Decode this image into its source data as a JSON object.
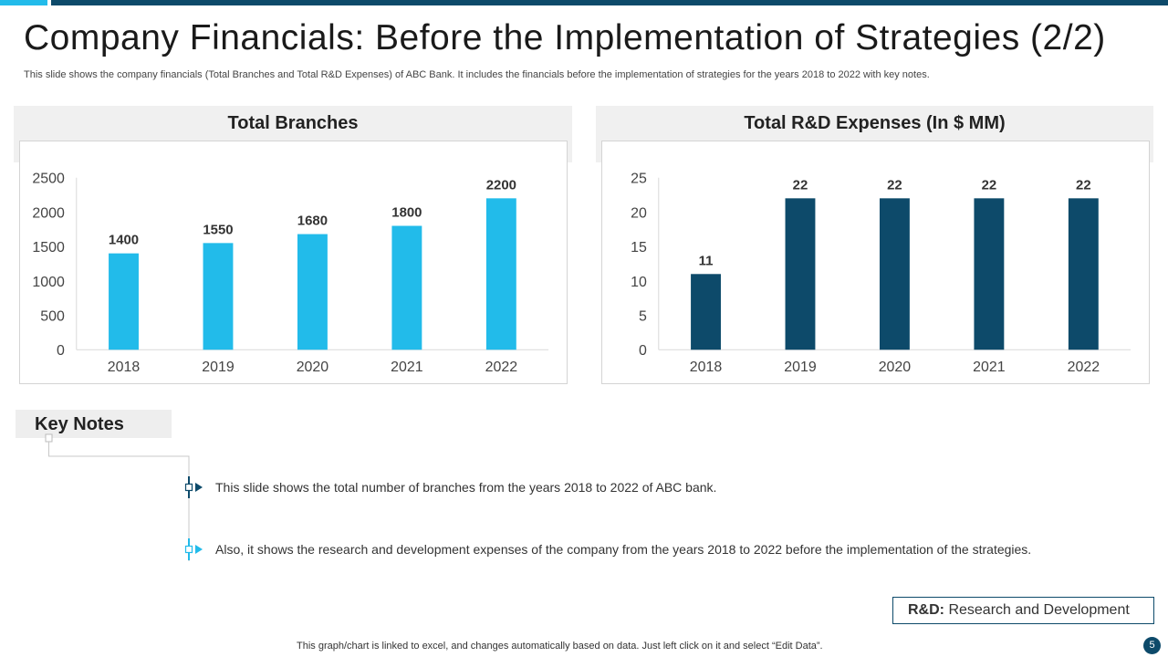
{
  "slide": {
    "title": "Company Financials: Before the Implementation of Strategies (2/2)",
    "subtitle": "This slide shows the company financials (Total Branches and Total R&D Expenses) of ABC Bank. It includes the financials before the implementation of strategies for the years 2018 to 2022 with key notes.",
    "page_number": "5"
  },
  "colors": {
    "accent_light": "#22bbea",
    "accent_dark": "#0d4a6a"
  },
  "chart_data": [
    {
      "type": "bar",
      "title": "Total Branches",
      "categories": [
        "2018",
        "2019",
        "2020",
        "2021",
        "2022"
      ],
      "values": [
        1400,
        1550,
        1680,
        1800,
        2200
      ],
      "ylim": [
        0,
        2500
      ],
      "yticks": [
        0,
        500,
        1000,
        1500,
        2000,
        2500
      ],
      "xlabel": "",
      "ylabel": "",
      "color": "#22bbea",
      "grid": false
    },
    {
      "type": "bar",
      "title": "Total R&D Expenses (In $ MM)",
      "categories": [
        "2018",
        "2019",
        "2020",
        "2021",
        "2022"
      ],
      "values": [
        11,
        22,
        22,
        22,
        22
      ],
      "ylim": [
        0,
        25
      ],
      "yticks": [
        0,
        5,
        10,
        15,
        20,
        25
      ],
      "xlabel": "",
      "ylabel": "",
      "color": "#0d4a6a",
      "grid": false
    }
  ],
  "key_notes": {
    "label": "Key Notes",
    "items": [
      "This slide shows the total number of branches from the years 2018 to 2022 of ABC bank.",
      "Also, it shows the research and development expenses of the company from the years 2018 to 2022 before the implementation of the strategies."
    ]
  },
  "legend": {
    "abbr": "R&D:",
    "meaning": "Research and Development"
  },
  "footer": {
    "text": "This graph/chart is linked to excel,  and changes automatically based on data. Just left click on it and select “Edit Data”."
  }
}
